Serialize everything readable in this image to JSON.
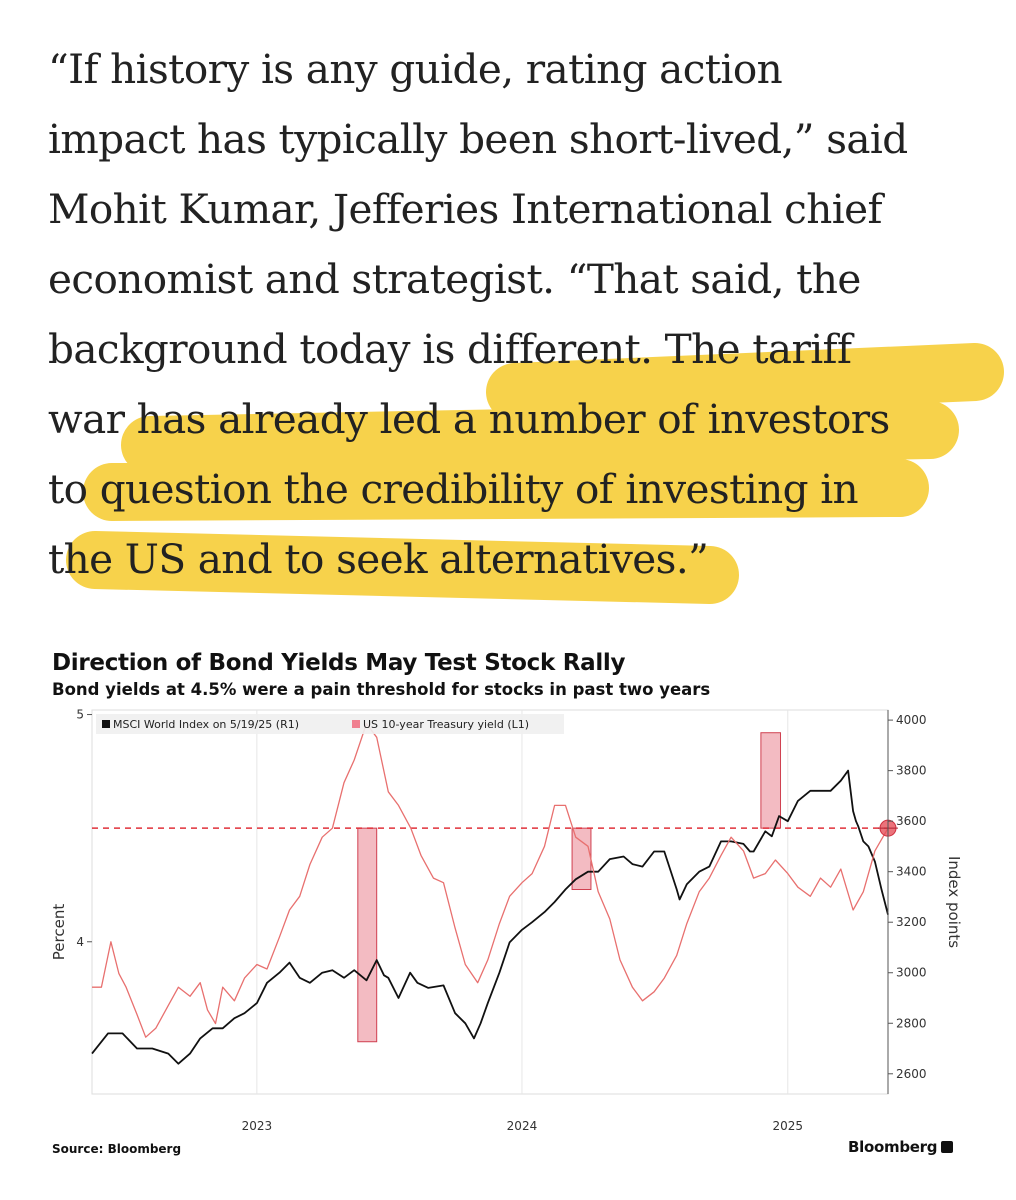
{
  "article": {
    "quote_lines": [
      "“If history is any guide, rating action",
      "impact has typically been short-lived,” said",
      "Mohit Kumar, Jefferies International chief",
      "economist and strategist. “That said, the",
      "background today is different. The tariff",
      "war has already led a number of investors",
      "to question the credibility of investing in",
      "the US and to seek alternatives.”"
    ],
    "highlight_color": "#f5c518"
  },
  "chart_data": {
    "type": "line",
    "title": "Direction of Bond Yields May Test Stock Rally",
    "subtitle": "Bond yields at 4.5% were a pain threshold for stocks in past two years",
    "ylabel": "Percent",
    "ylabel_right": "Index points",
    "source": "Source: Bloomberg",
    "brand": "Bloomberg",
    "xlim": [
      "2022-05-19",
      "2025-05-19"
    ],
    "x_ticks": [
      {
        "date": "2023-01-01",
        "label": "2023"
      },
      {
        "date": "2024-01-01",
        "label": "2024"
      },
      {
        "date": "2025-01-01",
        "label": "2025"
      }
    ],
    "ylim_left": [
      3.33,
      5.02
    ],
    "ylim_right": [
      2520,
      4040
    ],
    "y_ticks_left": [
      {
        "value": 4,
        "label": "4"
      },
      {
        "value": 5,
        "label": "5"
      }
    ],
    "y_ticks_right": [
      {
        "value": 2600,
        "label": "2600"
      },
      {
        "value": 2800,
        "label": "2800"
      },
      {
        "value": 3000,
        "label": "3000"
      },
      {
        "value": 3200,
        "label": "3200"
      },
      {
        "value": 3400,
        "label": "3400"
      },
      {
        "value": 3600,
        "label": "3600"
      },
      {
        "value": 3800,
        "label": "3800"
      },
      {
        "value": 4000,
        "label": "4000"
      }
    ],
    "threshold": {
      "value": 4.5,
      "axis": "left",
      "color": "#e0303a"
    },
    "grid": "vertical",
    "legend_position": "top-left",
    "series": [
      {
        "name": "MSCI World Index on 5/19/25 (R1)",
        "axis": "right",
        "color": "#111111",
        "points": [
          [
            "2022-05-19",
            2680
          ],
          [
            "2022-06-10",
            2760
          ],
          [
            "2022-06-30",
            2760
          ],
          [
            "2022-07-20",
            2700
          ],
          [
            "2022-08-10",
            2700
          ],
          [
            "2022-09-01",
            2680
          ],
          [
            "2022-09-15",
            2640
          ],
          [
            "2022-10-01",
            2680
          ],
          [
            "2022-10-15",
            2740
          ],
          [
            "2022-11-01",
            2780
          ],
          [
            "2022-11-15",
            2780
          ],
          [
            "2022-12-01",
            2820
          ],
          [
            "2022-12-15",
            2840
          ],
          [
            "2023-01-01",
            2880
          ],
          [
            "2023-01-15",
            2960
          ],
          [
            "2023-02-01",
            3000
          ],
          [
            "2023-02-15",
            3040
          ],
          [
            "2023-03-01",
            2980
          ],
          [
            "2023-03-15",
            2960
          ],
          [
            "2023-04-01",
            3000
          ],
          [
            "2023-04-15",
            3010
          ],
          [
            "2023-05-01",
            2980
          ],
          [
            "2023-05-15",
            3010
          ],
          [
            "2023-06-01",
            2970
          ],
          [
            "2023-06-15",
            3050
          ],
          [
            "2023-06-25",
            2990
          ],
          [
            "2023-07-01",
            2980
          ],
          [
            "2023-07-15",
            2900
          ],
          [
            "2023-07-31",
            3000
          ],
          [
            "2023-08-10",
            2960
          ],
          [
            "2023-08-25",
            2940
          ],
          [
            "2023-09-15",
            2950
          ],
          [
            "2023-10-01",
            2840
          ],
          [
            "2023-10-15",
            2800
          ],
          [
            "2023-10-27",
            2740
          ],
          [
            "2023-11-05",
            2800
          ],
          [
            "2023-11-15",
            2880
          ],
          [
            "2023-12-01",
            3000
          ],
          [
            "2023-12-15",
            3120
          ],
          [
            "2024-01-01",
            3170
          ],
          [
            "2024-01-15",
            3200
          ],
          [
            "2024-02-01",
            3240
          ],
          [
            "2024-02-15",
            3280
          ],
          [
            "2024-03-01",
            3330
          ],
          [
            "2024-03-15",
            3370
          ],
          [
            "2024-04-01",
            3400
          ],
          [
            "2024-04-15",
            3400
          ],
          [
            "2024-05-01",
            3450
          ],
          [
            "2024-05-20",
            3460
          ],
          [
            "2024-06-01",
            3430
          ],
          [
            "2024-06-15",
            3420
          ],
          [
            "2024-07-01",
            3480
          ],
          [
            "2024-07-15",
            3480
          ],
          [
            "2024-08-01",
            3330
          ],
          [
            "2024-08-05",
            3290
          ],
          [
            "2024-08-15",
            3350
          ],
          [
            "2024-09-01",
            3400
          ],
          [
            "2024-09-15",
            3420
          ],
          [
            "2024-10-01",
            3520
          ],
          [
            "2024-10-15",
            3520
          ],
          [
            "2024-11-01",
            3510
          ],
          [
            "2024-11-10",
            3480
          ],
          [
            "2024-11-15",
            3480
          ],
          [
            "2024-12-01",
            3560
          ],
          [
            "2024-12-10",
            3540
          ],
          [
            "2024-12-20",
            3620
          ],
          [
            "2025-01-01",
            3600
          ],
          [
            "2025-01-15",
            3680
          ],
          [
            "2025-02-01",
            3720
          ],
          [
            "2025-02-18",
            3720
          ],
          [
            "2025-03-01",
            3720
          ],
          [
            "2025-03-15",
            3760
          ],
          [
            "2025-03-25",
            3800
          ],
          [
            "2025-04-01",
            3640
          ],
          [
            "2025-04-05",
            3600
          ],
          [
            "2025-04-08",
            3580
          ],
          [
            "2025-04-15",
            3520
          ],
          [
            "2025-04-22",
            3500
          ],
          [
            "2025-05-01",
            3440
          ],
          [
            "2025-05-10",
            3330
          ],
          [
            "2025-05-19",
            3230
          ]
        ]
      },
      {
        "name": "US 10-year Treasury yield (L1)",
        "axis": "left",
        "color": "#e8706f",
        "points": [
          [
            "2022-05-19",
            3.8
          ],
          [
            "2022-06-01",
            3.8
          ],
          [
            "2022-06-14",
            4.0
          ],
          [
            "2022-06-25",
            3.86
          ],
          [
            "2022-07-05",
            3.8
          ],
          [
            "2022-07-20",
            3.68
          ],
          [
            "2022-08-01",
            3.58
          ],
          [
            "2022-08-15",
            3.62
          ],
          [
            "2022-09-01",
            3.72
          ],
          [
            "2022-09-15",
            3.8
          ],
          [
            "2022-10-01",
            3.76
          ],
          [
            "2022-10-15",
            3.82
          ],
          [
            "2022-10-25",
            3.7
          ],
          [
            "2022-11-05",
            3.64
          ],
          [
            "2022-11-15",
            3.8
          ],
          [
            "2022-12-01",
            3.74
          ],
          [
            "2022-12-15",
            3.84
          ],
          [
            "2023-01-01",
            3.9
          ],
          [
            "2023-01-15",
            3.88
          ],
          [
            "2023-02-01",
            4.02
          ],
          [
            "2023-02-15",
            4.14
          ],
          [
            "2023-03-01",
            4.2
          ],
          [
            "2023-03-15",
            4.34
          ],
          [
            "2023-04-01",
            4.46
          ],
          [
            "2023-04-15",
            4.5
          ],
          [
            "2023-05-01",
            4.7
          ],
          [
            "2023-05-15",
            4.8
          ],
          [
            "2023-06-01",
            4.96
          ],
          [
            "2023-06-15",
            4.9
          ],
          [
            "2023-07-01",
            4.66
          ],
          [
            "2023-07-15",
            4.6
          ],
          [
            "2023-08-01",
            4.5
          ],
          [
            "2023-08-15",
            4.38
          ],
          [
            "2023-09-01",
            4.28
          ],
          [
            "2023-09-15",
            4.26
          ],
          [
            "2023-10-01",
            4.06
          ],
          [
            "2023-10-15",
            3.9
          ],
          [
            "2023-11-01",
            3.82
          ],
          [
            "2023-11-15",
            3.92
          ],
          [
            "2023-12-01",
            4.08
          ],
          [
            "2023-12-15",
            4.2
          ],
          [
            "2024-01-01",
            4.26
          ],
          [
            "2024-01-15",
            4.3
          ],
          [
            "2024-02-01",
            4.42
          ],
          [
            "2024-02-15",
            4.6
          ],
          [
            "2024-03-01",
            4.6
          ],
          [
            "2024-03-15",
            4.46
          ],
          [
            "2024-04-01",
            4.42
          ],
          [
            "2024-04-15",
            4.22
          ],
          [
            "2024-05-01",
            4.1
          ],
          [
            "2024-05-15",
            3.92
          ],
          [
            "2024-06-01",
            3.8
          ],
          [
            "2024-06-15",
            3.74
          ],
          [
            "2024-07-01",
            3.78
          ],
          [
            "2024-07-15",
            3.84
          ],
          [
            "2024-08-01",
            3.94
          ],
          [
            "2024-08-15",
            4.08
          ],
          [
            "2024-09-01",
            4.22
          ],
          [
            "2024-09-15",
            4.28
          ],
          [
            "2024-10-01",
            4.38
          ],
          [
            "2024-10-15",
            4.46
          ],
          [
            "2024-11-01",
            4.4
          ],
          [
            "2024-11-15",
            4.28
          ],
          [
            "2024-12-01",
            4.3
          ],
          [
            "2024-12-15",
            4.36
          ],
          [
            "2025-01-01",
            4.3
          ],
          [
            "2025-01-15",
            4.24
          ],
          [
            "2025-02-01",
            4.2
          ],
          [
            "2025-02-15",
            4.28
          ],
          [
            "2025-03-01",
            4.24
          ],
          [
            "2025-03-15",
            4.32
          ],
          [
            "2025-04-01",
            4.14
          ],
          [
            "2025-04-15",
            4.22
          ],
          [
            "2025-05-01",
            4.4
          ],
          [
            "2025-05-19",
            4.5
          ]
        ]
      }
    ],
    "shaded_periods": [
      {
        "start": "2023-05-20",
        "end": "2023-06-15",
        "low": 3.56,
        "high": 4.5
      },
      {
        "start": "2024-03-10",
        "end": "2024-04-05",
        "low": 4.23,
        "high": 4.5
      },
      {
        "start": "2024-11-25",
        "end": "2024-12-22",
        "low": 4.5,
        "high": 4.92
      }
    ],
    "marker": {
      "date": "2025-05-19",
      "value": 4.5
    }
  }
}
